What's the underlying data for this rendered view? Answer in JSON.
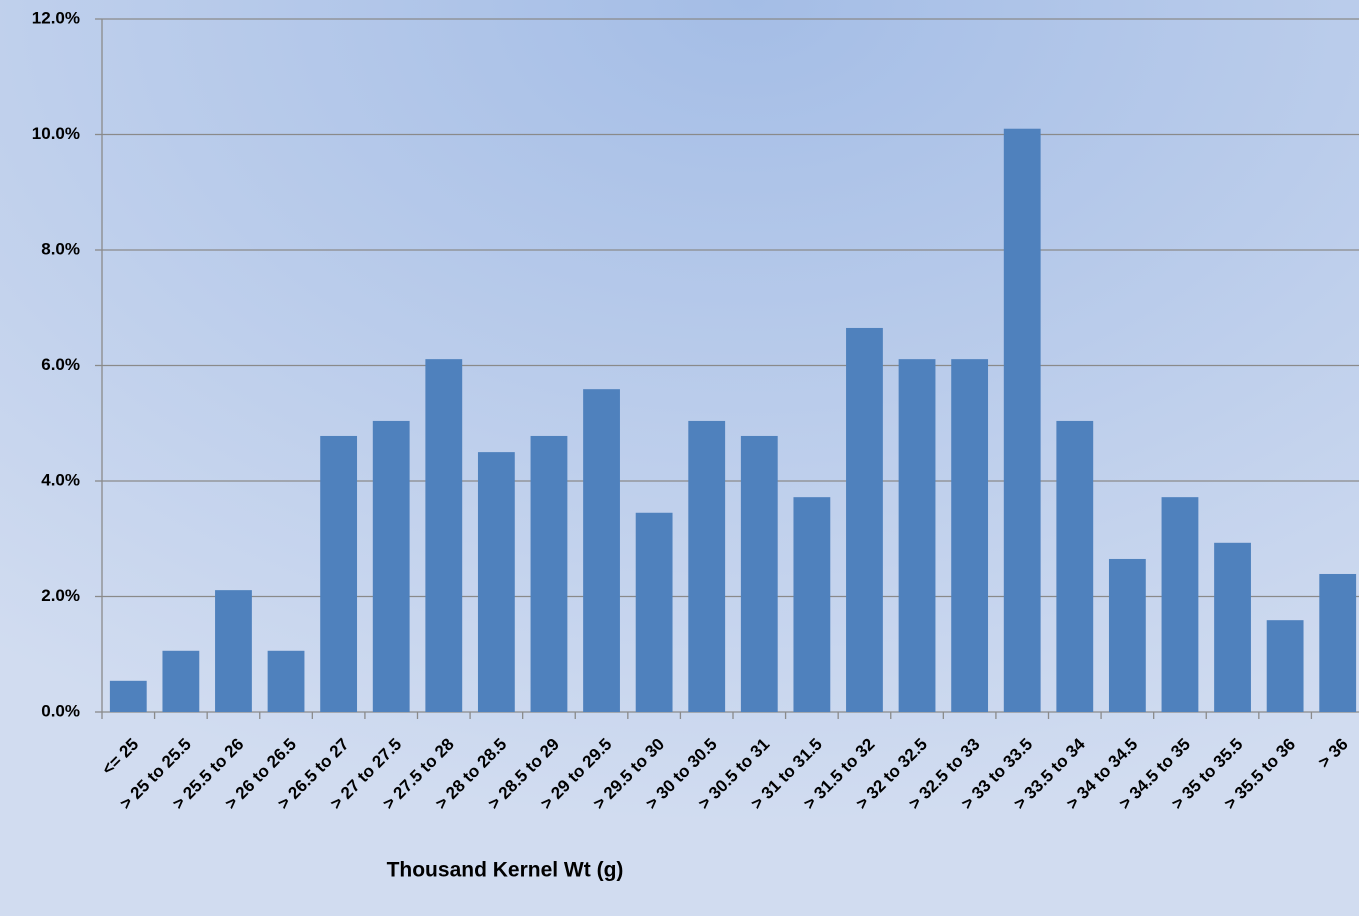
{
  "chart_data": {
    "type": "bar",
    "x_label": "Thousand Kernel Wt (g)",
    "categories": [
      "<= 25",
      "> 25 to 25.5",
      "> 25.5 to 26",
      "> 26 to 26.5",
      "> 26.5 to 27",
      "> 27 to 27.5",
      "> 27.5 to 28",
      "> 28 to 28.5",
      "> 28.5 to 29",
      "> 29 to 29.5",
      "> 29.5 to 30",
      "> 30 to 30.5",
      "> 30.5 to 31",
      "> 31 to 31.5",
      "> 31.5 to 32",
      "> 32 to 32.5",
      "> 32.5 to 33",
      "> 33 to 33.5",
      "> 33.5 to 34",
      "> 34 to 34.5",
      "> 34.5 to 35",
      "> 35 to 35.5",
      "> 35.5 to 36",
      "> 36"
    ],
    "values": [
      0.54,
      1.06,
      2.11,
      1.06,
      4.78,
      5.04,
      6.11,
      4.5,
      4.78,
      5.59,
      3.45,
      5.04,
      4.78,
      3.72,
      6.65,
      6.11,
      6.11,
      10.1,
      5.04,
      2.65,
      3.72,
      2.93,
      1.59,
      2.39
    ],
    "color": "#4f81bd",
    "ylim": [
      0,
      12
    ],
    "yticks": [
      {
        "value": 0,
        "label": "0.0%"
      },
      {
        "value": 2,
        "label": "2.0%"
      },
      {
        "value": 4,
        "label": "4.0%"
      },
      {
        "value": 6,
        "label": "6.0%"
      },
      {
        "value": 8,
        "label": "8.0%"
      },
      {
        "value": 10,
        "label": "10.0%"
      },
      {
        "value": 12,
        "label": "12.0%"
      }
    ],
    "grid": true
  }
}
